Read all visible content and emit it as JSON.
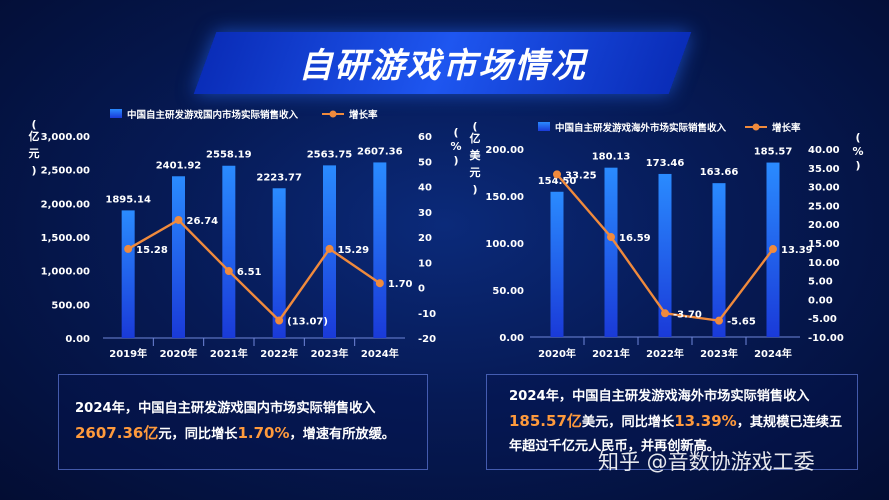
{
  "page_title": "自研游戏市场情况",
  "chart_data": [
    {
      "type": "bar",
      "categories": [
        "2019年",
        "2020年",
        "2021年",
        "2022年",
        "2023年",
        "2024年"
      ],
      "series": [
        {
          "name": "中国自主研发游戏国内市场实际销售收入",
          "type": "bar",
          "axis": "left",
          "values": [
            1895.14,
            2401.92,
            2558.19,
            2223.77,
            2563.75,
            2607.36
          ],
          "labels": [
            "1895.14",
            "2401.92",
            "2558.19",
            "2223.77",
            "2563.75",
            "2607.36"
          ]
        },
        {
          "name": "增长率",
          "type": "line",
          "axis": "right",
          "values": [
            15.28,
            26.74,
            6.51,
            -13.07,
            15.29,
            1.7
          ],
          "labels": [
            "15.28",
            "26.74",
            "6.51",
            "(13.07)",
            "15.29",
            "1.70"
          ]
        }
      ],
      "ylabel_left": "亿元",
      "ylabel_right": "%",
      "ylim_left": [
        0,
        3000
      ],
      "ylim_right": [
        -20,
        60
      ],
      "yticks_left": [
        "0.00",
        "500.00",
        "1,000.00",
        "1,500.00",
        "2,000.00",
        "2,500.00",
        "3,000.00"
      ],
      "yticks_right": [
        "-20",
        "-10",
        "0",
        "10",
        "20",
        "30",
        "40",
        "50",
        "60"
      ],
      "legend": "top-left",
      "colors": {
        "bar": "#1a5cff",
        "line": "#f08a3c"
      }
    },
    {
      "type": "bar",
      "categories": [
        "2020年",
        "2021年",
        "2022年",
        "2023年",
        "2024年"
      ],
      "series": [
        {
          "name": "中国自主研发游戏海外市场实际销售收入",
          "type": "bar",
          "axis": "left",
          "values": [
            154.5,
            180.13,
            173.46,
            163.66,
            185.57
          ],
          "labels": [
            "154.50",
            "180.13",
            "173.46",
            "163.66",
            "185.57"
          ]
        },
        {
          "name": "增长率",
          "type": "line",
          "axis": "right",
          "values": [
            33.25,
            16.59,
            -3.7,
            -5.65,
            13.39
          ],
          "labels": [
            "33.25",
            "16.59",
            "-3.70",
            "-5.65",
            "13.39"
          ]
        }
      ],
      "ylabel_left": "亿美元",
      "ylabel_right": "%",
      "ylim_left": [
        0,
        200
      ],
      "ylim_right": [
        -10,
        40
      ],
      "yticks_left": [
        "0.00",
        "50.00",
        "100.00",
        "150.00",
        "200.00"
      ],
      "yticks_right": [
        "-10.00",
        "-5.00",
        "0.00",
        "5.00",
        "10.00",
        "15.00",
        "20.00",
        "25.00",
        "30.00",
        "35.00",
        "40.00"
      ],
      "legend": "top-left",
      "colors": {
        "bar": "#1a5cff",
        "line": "#f08a3c"
      }
    }
  ],
  "summary_left": {
    "p1": "2024年，中国自主研发游戏国内市场实际销售收入",
    "v1": "2607.36亿",
    "p2": "元，同比增长",
    "v2": "1.70%",
    "p3": "，增速有所放缓。"
  },
  "summary_right": {
    "p1": "2024年，中国自主研发游戏海外市场实际销售收入",
    "v1": "185.57亿",
    "p2": "美元，同比增长",
    "v2": "13.39%",
    "p3": "，其规模已连续五年超过千亿元人民币，并再创新高。"
  },
  "watermark": "知乎 @音数协游戏工委"
}
